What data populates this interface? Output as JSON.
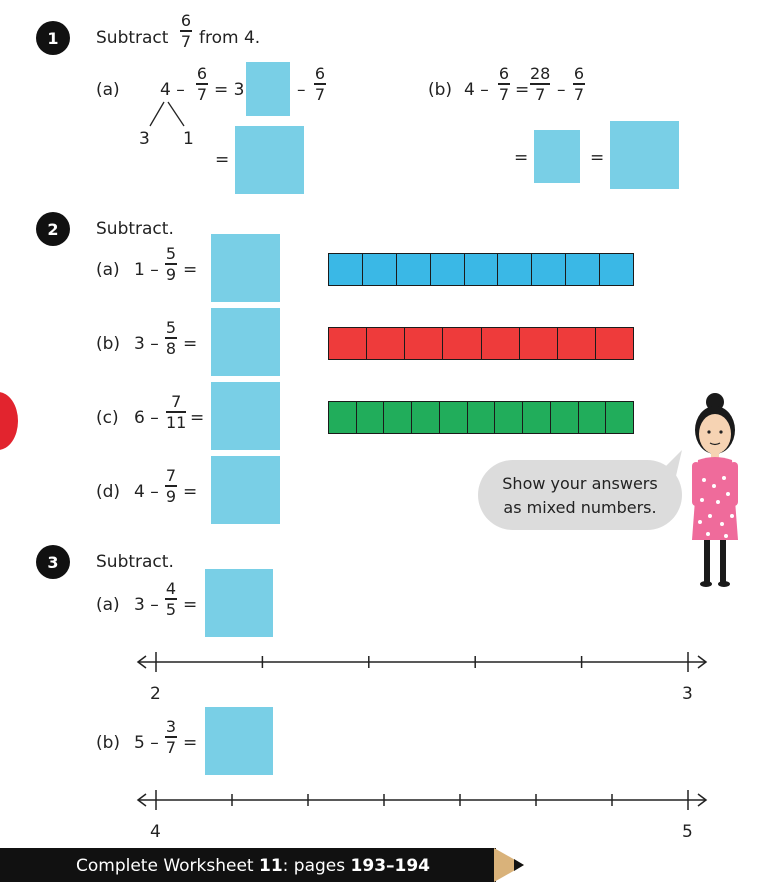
{
  "q1": {
    "number": "1",
    "prompt_pre": "Subtract",
    "prompt_num": "6",
    "prompt_den": "7",
    "prompt_post": "from 4.",
    "a": {
      "label": "(a)",
      "lhs": "4 –",
      "f1_num": "6",
      "f1_den": "7",
      "eq_whole": "= 3",
      "minus": "–",
      "f2_num": "6",
      "f2_den": "7",
      "split_left": "3",
      "split_right": "1",
      "equals": "="
    },
    "b": {
      "label": "(b)",
      "lhs": "4 –",
      "f1_num": "6",
      "f1_den": "7",
      "equals": "=",
      "f2_num": "28",
      "f2_den": "7",
      "minus": "–",
      "f3_num": "6",
      "f3_den": "7",
      "eq1": "=",
      "eq2": "="
    }
  },
  "q2": {
    "number": "2",
    "prompt": "Subtract.",
    "items": [
      {
        "label": "(a)",
        "whole": "1 –",
        "num": "5",
        "den": "9",
        "eq": "=",
        "color": "#3ab8e6",
        "cells": 9
      },
      {
        "label": "(b)",
        "whole": "3 –",
        "num": "5",
        "den": "8",
        "eq": "=",
        "color": "#ee3b3b",
        "cells": 8
      },
      {
        "label": "(c)",
        "whole": "6 –",
        "num": "7",
        "den": "11",
        "eq": "=",
        "color": "#21ad5b",
        "cells": 11
      },
      {
        "label": "(d)",
        "whole": "4 –",
        "num": "7",
        "den": "9",
        "eq": "="
      }
    ]
  },
  "speech": {
    "line1": "Show your answers",
    "line2": "as mixed numbers."
  },
  "q3": {
    "number": "3",
    "prompt": "Subtract.",
    "a": {
      "label": "(a)",
      "whole": "3 –",
      "num": "4",
      "den": "5",
      "eq": "=",
      "start": "2",
      "end": "3",
      "divisions": 5
    },
    "b": {
      "label": "(b)",
      "whole": "5 –",
      "num": "3",
      "den": "7",
      "eq": "=",
      "start": "4",
      "end": "5",
      "divisions": 7
    }
  },
  "footer": {
    "pre": "Complete Worksheet ",
    "ws": "11",
    "mid": ": pages ",
    "pages": "193–194"
  },
  "colors": {
    "answer_box": "#79cfe6",
    "footer_bg": "#111111",
    "side_tab": "#e2242e"
  }
}
